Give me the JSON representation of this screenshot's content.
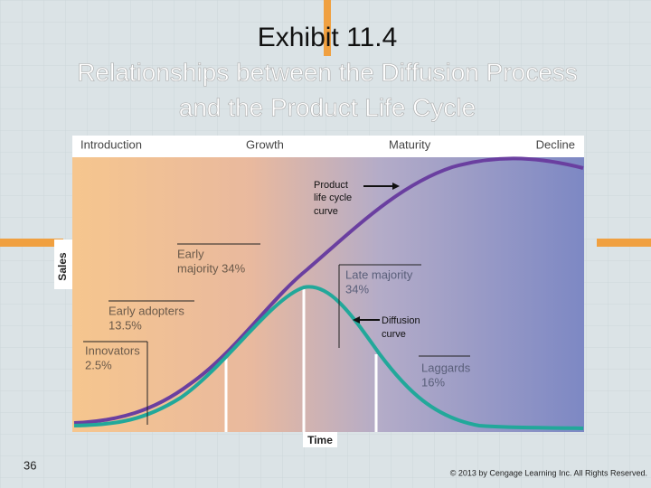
{
  "header": {
    "title": "Exhibit 11.4",
    "subtitle_lines": [
      "Relationships between the Diffusion Process",
      "and the Product Life Cycle"
    ]
  },
  "diagram": {
    "stages": [
      "Introduction",
      "Growth",
      "Maturity",
      "Decline"
    ],
    "y_axis_label": "Sales",
    "x_axis_label": "Time",
    "curves": [
      {
        "label_lines": [
          "Product",
          "life cycle",
          "curve"
        ]
      },
      {
        "label_lines": [
          "Diffusion",
          "curve"
        ]
      }
    ],
    "segments": [
      {
        "lines": [
          "Innovators",
          "2.5%"
        ]
      },
      {
        "lines": [
          "Early adopters",
          "13.5%"
        ]
      },
      {
        "lines": [
          "Early",
          "majority 34%"
        ]
      },
      {
        "lines": [
          "Late majority",
          "34%"
        ]
      },
      {
        "lines": [
          "Laggards",
          "16%"
        ]
      }
    ]
  },
  "footer": {
    "page_number": "36",
    "copyright": "© 2013 by Cengage Learning Inc. All Rights Reserved."
  }
}
